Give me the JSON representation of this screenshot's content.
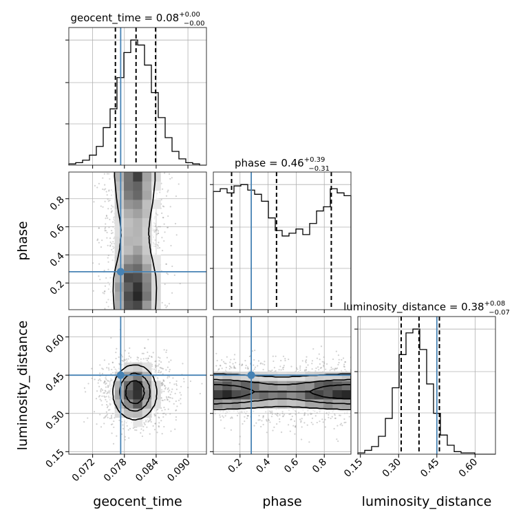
{
  "chart_data": {
    "type": "corner",
    "parameters": [
      "geocent_time",
      "phase",
      "luminosity_distance"
    ],
    "injection": {
      "geocent_time": 0.0773,
      "phase": 0.28,
      "luminosity_distance": 0.45
    },
    "titles": [
      {
        "param": "geocent_time",
        "prefix": "geocent_time = 0.08",
        "plus": "+0.00",
        "minus": "−0.00"
      },
      {
        "param": "phase",
        "prefix": "phase = 0.46",
        "plus": "+0.39",
        "minus": "−0.31"
      },
      {
        "param": "luminosity_distance",
        "prefix": "luminosity_distance = 0.38",
        "plus": "+0.08",
        "minus": "−0.07"
      }
    ],
    "axes": {
      "geocent_time": {
        "label": "geocent_time",
        "range": [
          0.0675,
          0.0935
        ],
        "ticks": [
          0.072,
          0.078,
          0.084,
          0.09
        ],
        "tick_labels": [
          "0.072",
          "0.078",
          "0.084",
          "0.090"
        ],
        "quantiles": [
          0.0763,
          0.0802,
          0.0839
        ]
      },
      "phase": {
        "label": "phase",
        "range": [
          0.01,
          0.99
        ],
        "ticks": [
          0.2,
          0.4,
          0.6,
          0.8
        ],
        "tick_labels": [
          "0.2",
          "0.4",
          "0.6",
          "0.8"
        ],
        "quantiles": [
          0.14,
          0.46,
          0.85
        ]
      },
      "luminosity_distance": {
        "label": "luminosity_distance",
        "range": [
          0.14,
          0.68
        ],
        "ticks": [
          0.15,
          0.3,
          0.45,
          0.6
        ],
        "tick_labels": [
          "0.15",
          "0.30",
          "0.45",
          "0.60"
        ],
        "quantiles": [
          0.31,
          0.38,
          0.46
        ]
      }
    },
    "histograms": {
      "geocent_time": {
        "bin_edges": [
          0.0675,
          0.0688,
          0.0701,
          0.0714,
          0.0727,
          0.074,
          0.0753,
          0.0766,
          0.0779,
          0.0792,
          0.0805,
          0.0818,
          0.0831,
          0.0844,
          0.0857,
          0.087,
          0.0883,
          0.0896,
          0.0909,
          0.0922,
          0.0935
        ],
        "counts": [
          1,
          2,
          4,
          8,
          15,
          30,
          45,
          70,
          90,
          100,
          96,
          80,
          58,
          38,
          22,
          11,
          5,
          2,
          1,
          0
        ]
      },
      "phase": {
        "bin_edges": [
          0.01,
          0.059,
          0.108,
          0.157,
          0.206,
          0.255,
          0.304,
          0.353,
          0.402,
          0.451,
          0.5,
          0.549,
          0.598,
          0.647,
          0.696,
          0.745,
          0.794,
          0.843,
          0.892,
          0.941,
          0.99
        ],
        "counts": [
          85,
          87,
          84,
          89,
          90,
          86,
          83,
          78,
          66,
          57,
          53,
          55,
          58,
          54,
          62,
          71,
          74,
          87,
          84,
          82
        ]
      },
      "luminosity_distance": {
        "bin_edges": [
          0.14,
          0.167,
          0.194,
          0.221,
          0.248,
          0.275,
          0.302,
          0.329,
          0.356,
          0.383,
          0.41,
          0.437,
          0.464,
          0.491,
          0.518,
          0.545,
          0.572,
          0.599,
          0.626,
          0.653,
          0.68
        ],
        "counts": [
          1,
          3,
          6,
          14,
          28,
          52,
          78,
          95,
          98,
          82,
          55,
          32,
          15,
          7,
          2,
          1,
          1,
          0,
          0,
          0
        ]
      }
    },
    "grid": true
  }
}
